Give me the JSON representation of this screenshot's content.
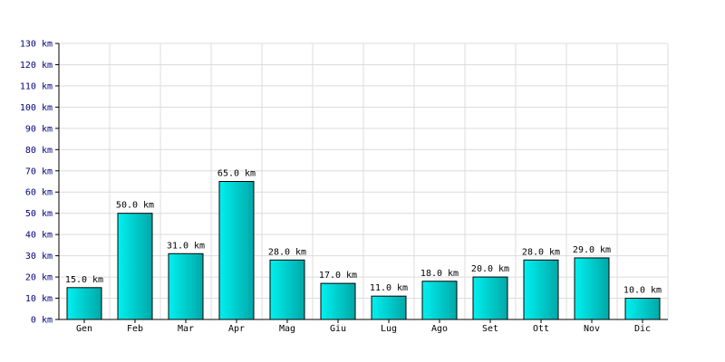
{
  "chart_data": {
    "type": "bar",
    "categories": [
      "Gen",
      "Feb",
      "Mar",
      "Apr",
      "Mag",
      "Giu",
      "Lug",
      "Ago",
      "Set",
      "Ott",
      "Nov",
      "Dic"
    ],
    "values": [
      15,
      50,
      31,
      65,
      28,
      17,
      11,
      18,
      20,
      28,
      29,
      10
    ],
    "data_labels": [
      "15.0 km",
      "50.0 km",
      "31.0 km",
      "65.0 km",
      "28.0 km",
      "17.0 km",
      "11.0 km",
      "18.0 km",
      "20.0 km",
      "28.0 km",
      "29.0 km",
      "10.0 km"
    ],
    "y_tick_labels": [
      "0 km",
      "10 km",
      "20 km",
      "30 km",
      "40 km",
      "50 km",
      "60 km",
      "70 km",
      "80 km",
      "90 km",
      "100 km",
      "110 km",
      "120 km",
      "130 km"
    ],
    "ylim": [
      0,
      130
    ],
    "y_step": 10,
    "grid": true,
    "colors": {
      "bar_fill_light": "#00f0f0",
      "bar_fill_dark": "#00a8a8",
      "bar_outline": "#000000",
      "grid": "#dcdcdc",
      "axis": "#000000",
      "y_tick_text": "#000080",
      "text": "#000000"
    }
  }
}
